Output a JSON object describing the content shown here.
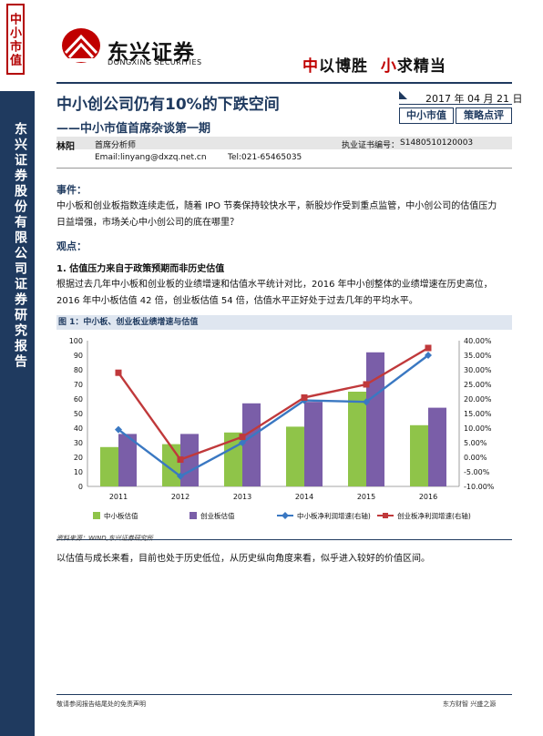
{
  "sidebar": {
    "tag": "中小市值",
    "org_text": "东兴证券股份有限公司证券研究报告"
  },
  "header": {
    "logo_name": "东兴证券",
    "logo_en": "DONGXING SECURITIES",
    "slogan_a_red": "中",
    "slogan_a": "以博胜",
    "slogan_b_red": "小",
    "slogan_b": "求精当"
  },
  "report": {
    "title": "中小创公司仍有10%的下跌空间",
    "subtitle": "——中小市值首席杂谈第一期",
    "date": "2017 年 04 月 21 日",
    "tag1": "中小市值",
    "tag2": "策略点评"
  },
  "analyst": {
    "name": "林阳",
    "role": "首席分析师",
    "cert_label": "执业证书编号：",
    "cert_no": "S1480510120003",
    "email": "Email:linyang@dxzq.net.cn",
    "tel": "Tel:021-65465035"
  },
  "body": {
    "event_h": "事件：",
    "event_text": "中小板和创业板指数连续走低，随着 IPO 节奏保持较快水平，新股炒作受到重点监管，中小创公司的估值压力日益增强，市场关心中小创公司的底在哪里？",
    "view_h": "观点：",
    "point1_h": "1.  估值压力来自于政策预期而非历史估值",
    "point1_text": "根据过去几年中小板和创业板的业绩增速和估值水平统计对比，2016 年中小创整体的业绩增速在历史高位，2016 年中小板估值 42 倍，创业板估值 54 倍，估值水平正好处于过去几年的平均水平。",
    "closing": "以估值与成长来看，目前也处于历史低位，从历史纵向角度来看，似乎进入较好的价值区间。"
  },
  "figure": {
    "title": "图 1：中小板、创业板业绩增速与估值",
    "source": "资料来源：WIND,东兴证券研究所"
  },
  "footer": {
    "left": "敬请参阅报告结尾处的免责声明",
    "right": "东方财智  兴盛之源"
  },
  "chart_data": {
    "type": "bar",
    "categories": [
      "2011",
      "2012",
      "2013",
      "2014",
      "2015",
      "2016"
    ],
    "ylim": [
      0,
      100
    ],
    "y2lim": [
      -10,
      40
    ],
    "yticks": [
      "0",
      "10",
      "20",
      "30",
      "40",
      "50",
      "60",
      "70",
      "80",
      "90",
      "100"
    ],
    "y2ticks": [
      "-10.00%",
      "-5.00%",
      "0.00%",
      "5.00%",
      "10.00%",
      "15.00%",
      "20.00%",
      "25.00%",
      "30.00%",
      "35.00%",
      "40.00%"
    ],
    "series": [
      {
        "name": "中小板估值",
        "kind": "bar",
        "axis": "left",
        "color": "#8fc449",
        "values": [
          27,
          29,
          37,
          41,
          65,
          42
        ]
      },
      {
        "name": "创业板估值",
        "kind": "bar",
        "axis": "left",
        "color": "#7a5ea8",
        "values": [
          36,
          36,
          57,
          58,
          92,
          54
        ]
      },
      {
        "name": "中小板净利润增速(右轴)",
        "kind": "line",
        "axis": "right",
        "color": "#3a78c2",
        "marker": "diamond",
        "values": [
          9.5,
          -6.5,
          5,
          19.5,
          19,
          35
        ]
      },
      {
        "name": "创业板净利润增速(右轴)",
        "kind": "line",
        "axis": "right",
        "color": "#c0393b",
        "marker": "square",
        "values": [
          29,
          -0.8,
          7,
          20.5,
          25,
          37.5
        ]
      }
    ],
    "legend_position": "bottom",
    "grid": false
  }
}
